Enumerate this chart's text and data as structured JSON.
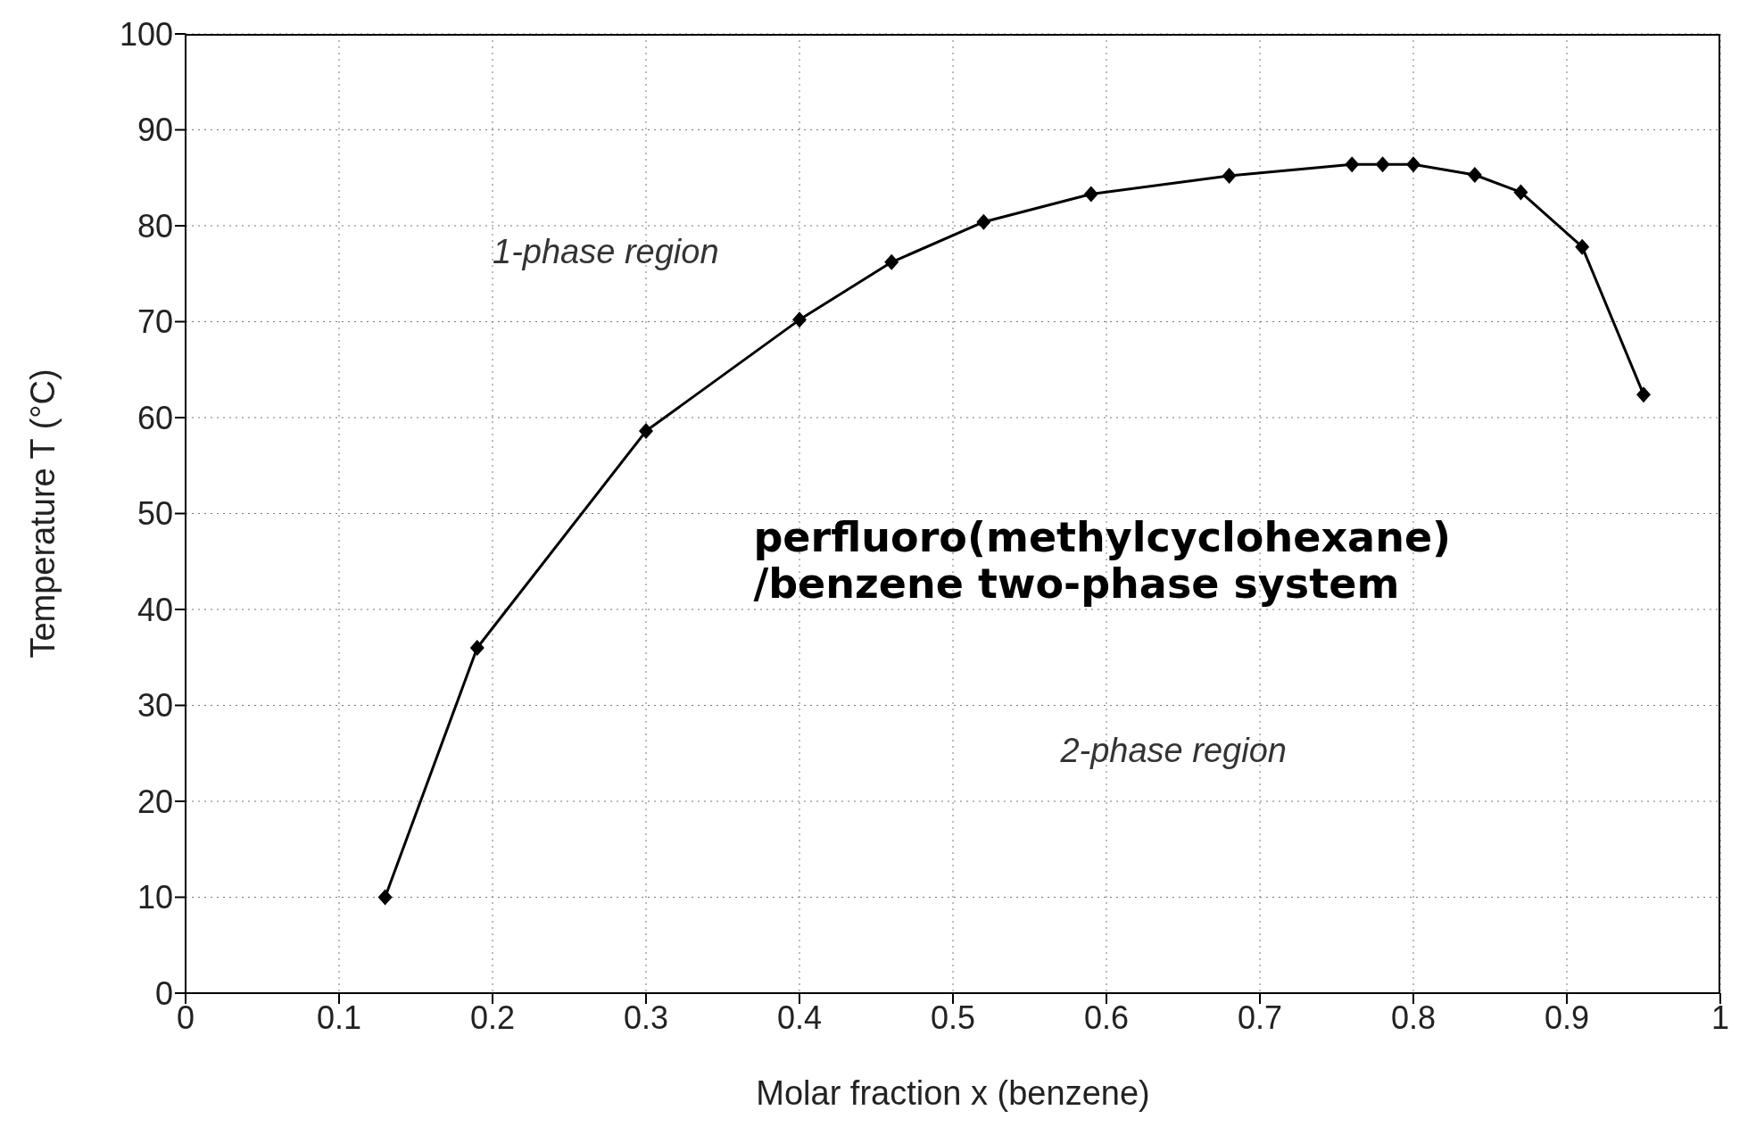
{
  "chart_data": {
    "type": "line",
    "title": "perfluoro(methylcyclohexane)\n/benzene two-phase system",
    "xlabel": "Molar fraction x (benzene)",
    "ylabel": "Temperature T (°C)",
    "annotations": [
      "1-phase region",
      "2-phase region"
    ],
    "x": [
      0.13,
      0.19,
      0.3,
      0.4,
      0.46,
      0.52,
      0.59,
      0.68,
      0.76,
      0.78,
      0.8,
      0.84,
      0.87,
      0.91,
      0.95
    ],
    "series": [
      {
        "color": "#000000",
        "values": [
          10,
          36,
          58.6,
          70.2,
          76.2,
          80.4,
          83.3,
          85.2,
          86.4,
          86.4,
          86.4,
          85.3,
          83.5,
          77.8,
          62.4
        ]
      }
    ],
    "xlim": [
      0,
      1
    ],
    "xticks": [
      0,
      0.1,
      0.2,
      0.3,
      0.4,
      0.5,
      0.6,
      0.7,
      0.8,
      0.9,
      1
    ],
    "ylim": [
      0,
      100
    ],
    "yticks": [
      0,
      10,
      20,
      30,
      40,
      50,
      60,
      70,
      80,
      90,
      100
    ],
    "grid": true,
    "marker": "diamond",
    "line_style": "solid"
  }
}
